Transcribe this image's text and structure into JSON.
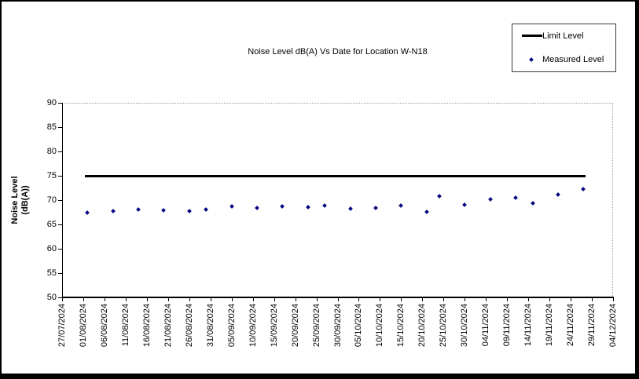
{
  "window": {
    "background": "#ffffff",
    "border_color": "#000000"
  },
  "chart_data": {
    "type": "scatter",
    "title": "Noise Level dB(A) Vs Date for Location W-N18",
    "xlabel": "",
    "ylabel_lines": [
      "Noise Level",
      "(dB(A))"
    ],
    "ylim": [
      50,
      90
    ],
    "y_ticks": [
      50,
      55,
      60,
      65,
      70,
      75,
      80,
      85,
      90
    ],
    "x_axis_start": "27/07/2024",
    "x_axis_end": "04/12/2024",
    "x_tick_labels": [
      "27/07/2024",
      "01/08/2024",
      "06/08/2024",
      "11/08/2024",
      "16/08/2024",
      "21/08/2024",
      "26/08/2024",
      "31/08/2024",
      "05/09/2024",
      "10/09/2024",
      "15/09/2024",
      "20/09/2024",
      "25/09/2024",
      "30/09/2024",
      "05/10/2024",
      "10/10/2024",
      "15/10/2024",
      "20/10/2024",
      "25/10/2024",
      "30/10/2024",
      "04/11/2024",
      "09/11/2024",
      "14/11/2024",
      "19/11/2024",
      "24/11/2024",
      "29/11/2024",
      "04/12/2024"
    ],
    "grid": "off",
    "legend_position": "top-right",
    "series": [
      {
        "name": "Limit Level",
        "type": "line",
        "color": "#000000",
        "value": 75,
        "span": [
          "02/08/2024",
          "27/11/2024"
        ]
      },
      {
        "name": "Measured Level",
        "type": "scatter",
        "marker": "diamond",
        "color": "#000080",
        "points": [
          {
            "date": "02/08/2024",
            "value": 67.5
          },
          {
            "date": "08/08/2024",
            "value": 67.7
          },
          {
            "date": "14/08/2024",
            "value": 68.0
          },
          {
            "date": "20/08/2024",
            "value": 67.9
          },
          {
            "date": "26/08/2024",
            "value": 67.7
          },
          {
            "date": "30/08/2024",
            "value": 68.1
          },
          {
            "date": "05/09/2024",
            "value": 68.7
          },
          {
            "date": "11/09/2024",
            "value": 68.4
          },
          {
            "date": "17/09/2024",
            "value": 68.7
          },
          {
            "date": "23/09/2024",
            "value": 68.6
          },
          {
            "date": "27/09/2024",
            "value": 68.8
          },
          {
            "date": "03/10/2024",
            "value": 68.3
          },
          {
            "date": "09/10/2024",
            "value": 68.4
          },
          {
            "date": "15/10/2024",
            "value": 68.8
          },
          {
            "date": "21/10/2024",
            "value": 67.6
          },
          {
            "date": "24/10/2024",
            "value": 70.8
          },
          {
            "date": "30/10/2024",
            "value": 69.1
          },
          {
            "date": "05/11/2024",
            "value": 70.1
          },
          {
            "date": "11/11/2024",
            "value": 70.5
          },
          {
            "date": "15/11/2024",
            "value": 69.4
          },
          {
            "date": "21/11/2024",
            "value": 71.2
          },
          {
            "date": "27/11/2024",
            "value": 72.2
          }
        ]
      }
    ]
  }
}
